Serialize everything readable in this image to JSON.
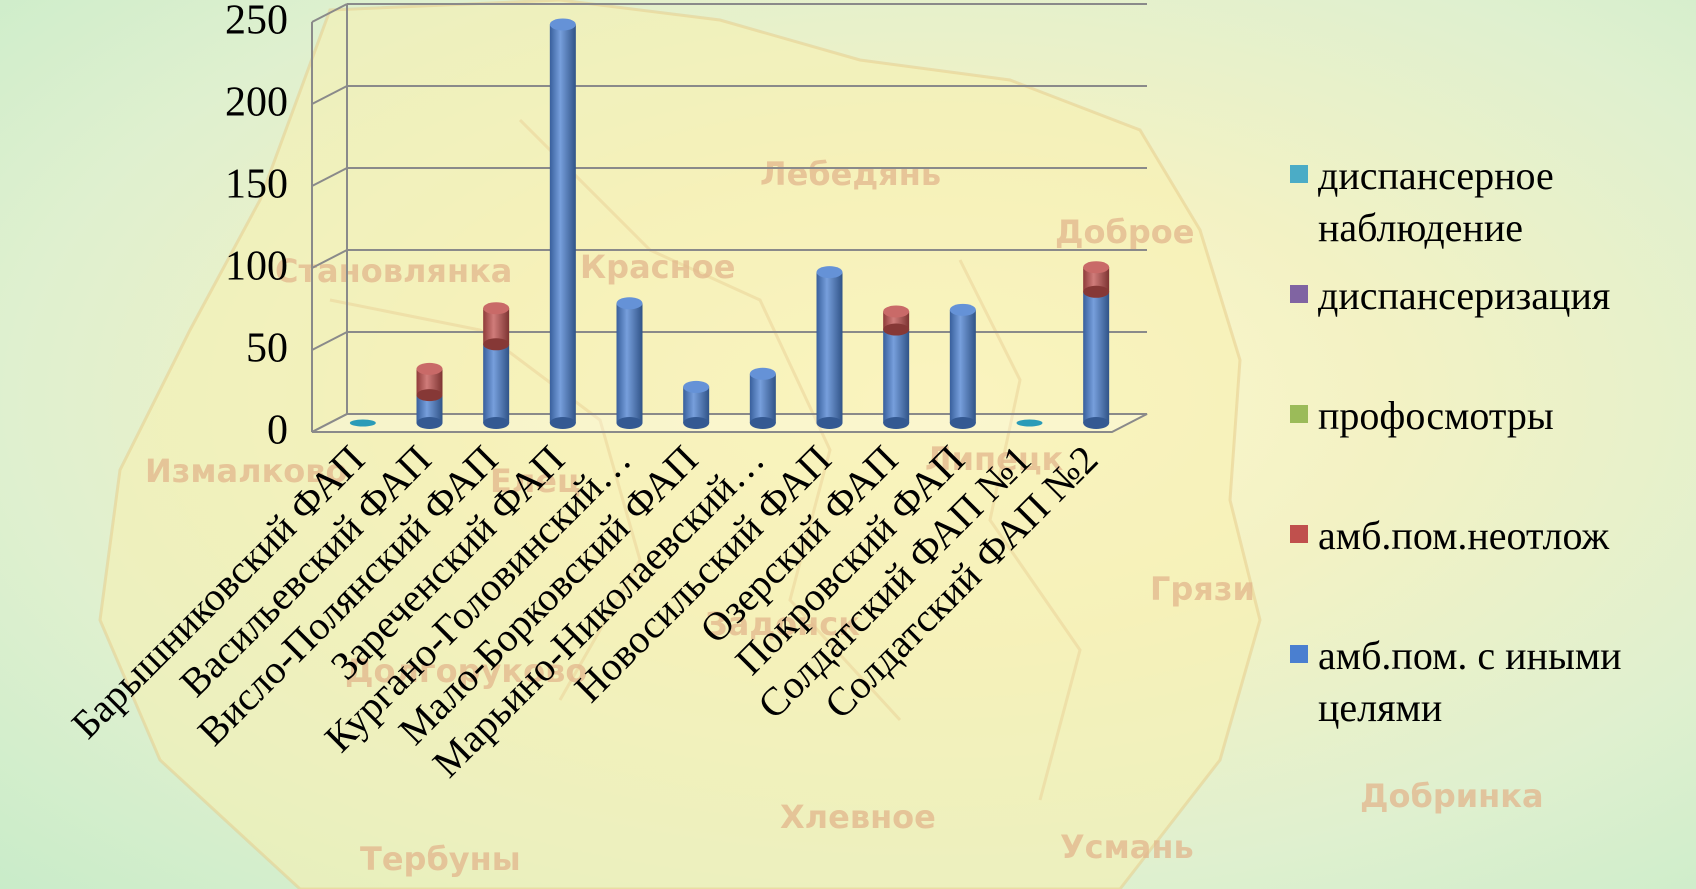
{
  "chart_data": {
    "type": "bar",
    "stacked": true,
    "three_d": true,
    "title": "",
    "xlabel": "",
    "ylabel": "",
    "ylim": [
      0,
      250
    ],
    "y_ticks": [
      "0",
      "50",
      "100",
      "150",
      "200",
      "250"
    ],
    "grid": true,
    "legend_position": "right",
    "categories": [
      "Барышниковский ФАП",
      "Васильевский ФАП",
      "Висло-Полянский ФАП",
      "Зареченский ФАП",
      "Кургано-Головинский…",
      "Мало-Борковский ФАП",
      "Марьино-Николаевский…",
      "Новосильский ФАП",
      "Озерский ФАП",
      "Покровский ФАП",
      "Солдатский ФАП №1",
      "Солдатский ФАП №2"
    ],
    "series": [
      {
        "name": "амб.пом. с иными целями",
        "color": "#4a7fd0",
        "values": [
          0,
          17,
          48,
          243,
          73,
          22,
          30,
          92,
          57,
          69,
          0,
          80
        ]
      },
      {
        "name": "амб.пом.неотлож",
        "color": "#c0504d",
        "values": [
          0,
          16,
          22,
          0,
          0,
          0,
          0,
          0,
          11,
          0,
          0,
          15
        ]
      },
      {
        "name": "профосмотры",
        "color": "#9bbb59",
        "values": [
          0,
          0,
          0,
          0,
          0,
          0,
          0,
          0,
          0,
          0,
          0,
          0
        ]
      },
      {
        "name": "диспансеризация",
        "color": "#8064a2",
        "values": [
          0,
          0,
          0,
          0,
          0,
          0,
          0,
          0,
          0,
          0,
          0,
          0
        ]
      },
      {
        "name": "диспансерное наблюдение",
        "color": "#4bacc6",
        "values": [
          0,
          0,
          0,
          0,
          0,
          0,
          0,
          0,
          0,
          0,
          0,
          0
        ]
      }
    ]
  },
  "legend": {
    "items": [
      {
        "label": "диспансерное наблюдение",
        "color": "#4bacc6"
      },
      {
        "label": "диспансеризация",
        "color": "#8064a2"
      },
      {
        "label": "профосмотры",
        "color": "#9bbb59"
      },
      {
        "label": "амб.пом.неотлож",
        "color": "#c0504d"
      },
      {
        "label": "амб.пом. с иными целями",
        "color": "#4a7fd0"
      }
    ]
  },
  "map_labels": [
    "Лебедянь",
    "Доброе",
    "Становлянка",
    "Красное",
    "Измалково",
    "Елец",
    "Липецк",
    "Задонск",
    "Грязи",
    "Долгоруково",
    "Хлевное",
    "Тербуны",
    "Усмань",
    "Добринка"
  ]
}
